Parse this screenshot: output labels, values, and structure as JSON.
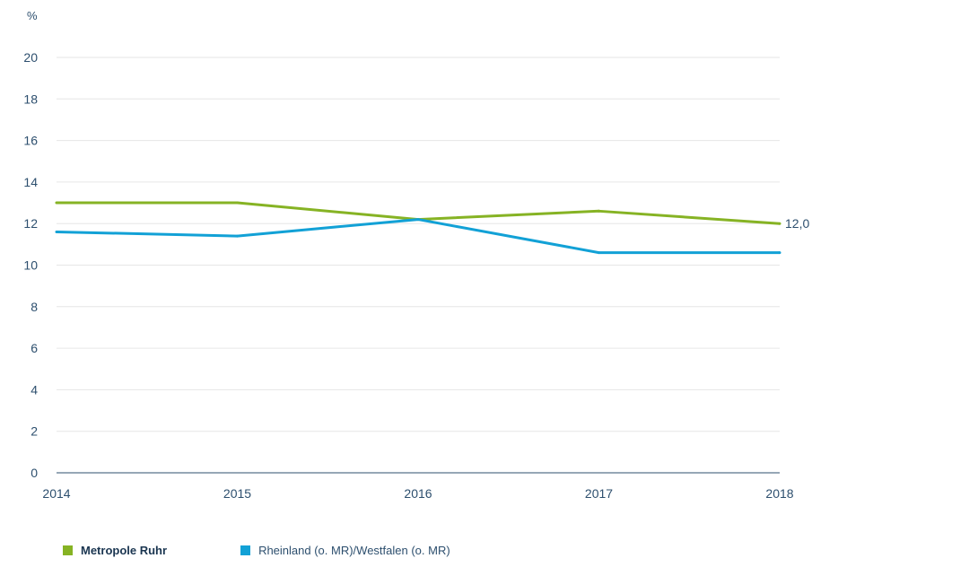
{
  "chart_data": {
    "type": "line",
    "unit": "%",
    "x": [
      "2014",
      "2015",
      "2016",
      "2017",
      "2018"
    ],
    "ylim": [
      0,
      20
    ],
    "yticks": [
      "0",
      "2",
      "4",
      "6",
      "8",
      "10",
      "12",
      "14",
      "16",
      "18",
      "20"
    ],
    "grid": true,
    "legend_position": "bottom-left",
    "series": [
      {
        "name": "Metropole Ruhr",
        "color": "#86b324",
        "values": [
          13.0,
          13.0,
          12.2,
          12.6,
          12.0
        ],
        "end_label": "12,0"
      },
      {
        "name": "Rheinland (o. MR)/Westfalen (o. MR)",
        "color": "#12a1d6",
        "values": [
          11.6,
          11.4,
          12.2,
          10.6,
          10.6
        ]
      }
    ]
  }
}
